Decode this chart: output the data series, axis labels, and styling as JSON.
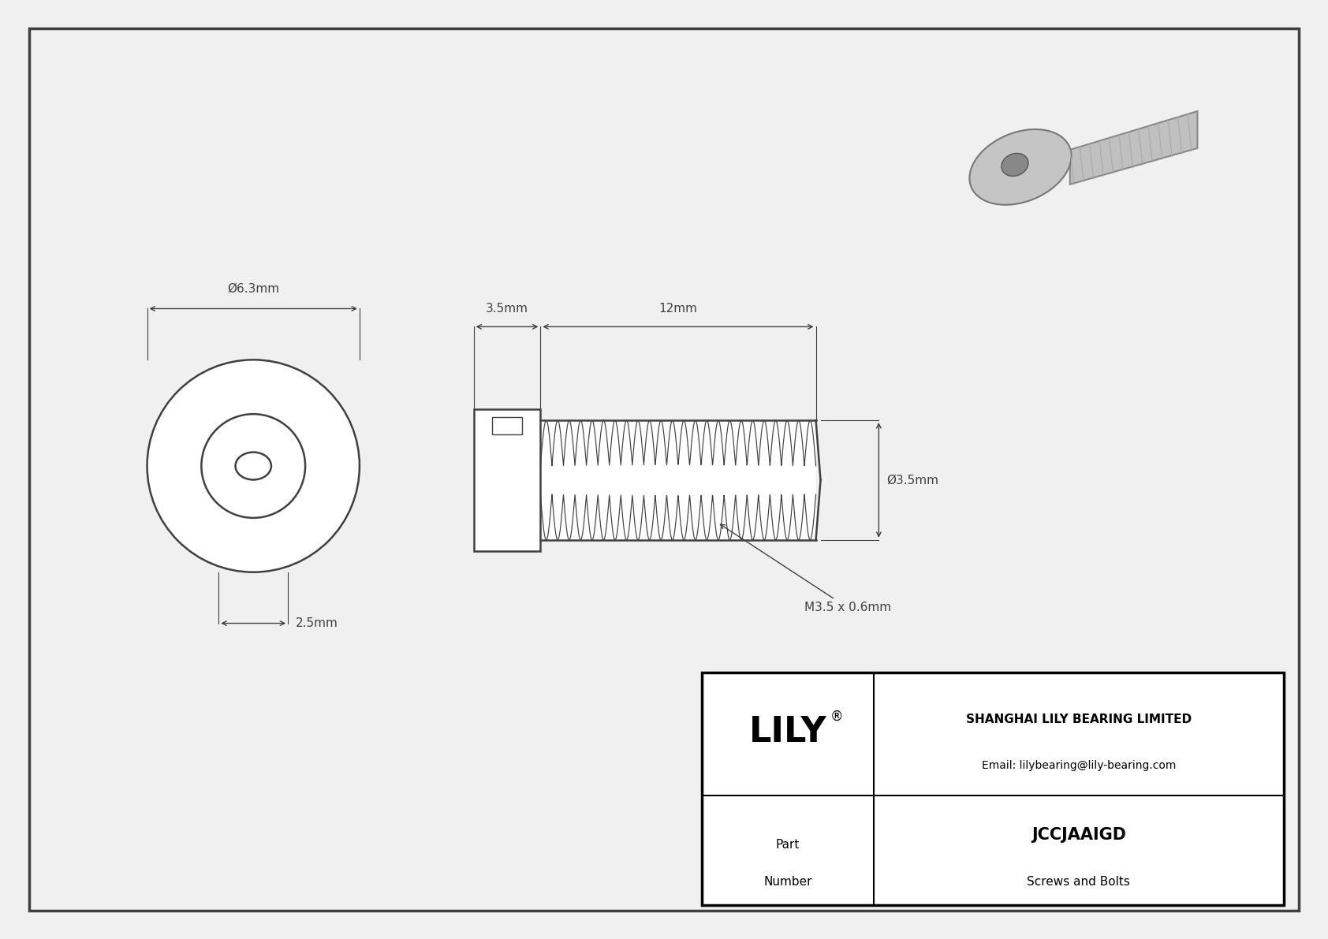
{
  "bg_color": "#f0f0f0",
  "line_color": "#404040",
  "dim_color": "#404040",
  "dims": {
    "head_diam_label": "Ø6.3mm",
    "head_len_label": "3.5mm",
    "thread_len_label": "12mm",
    "thread_diam_label": "Ø3.5mm",
    "thread_spec_label": "M3.5 x 0.6mm",
    "depth_label": "2.5mm"
  },
  "title_block": {
    "logo": "LILY",
    "reg": "®",
    "company": "SHANGHAI LILY BEARING LIMITED",
    "email": "Email: lilybearing@lily-bearing.com",
    "part_number": "JCCJAAIGD",
    "part_type": "Screws and Bolts"
  }
}
